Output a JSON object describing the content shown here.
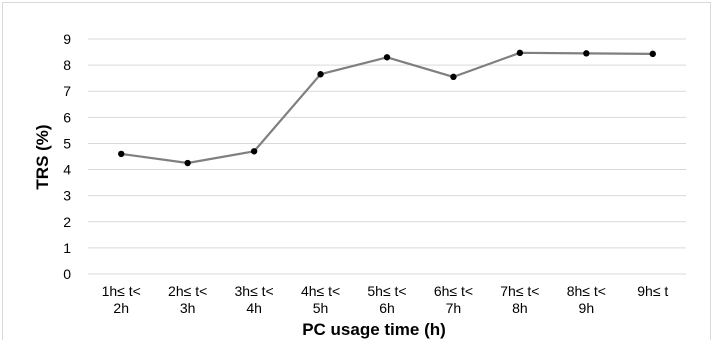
{
  "chart_data": {
    "type": "line",
    "title": "",
    "xlabel": "PC usage time (h)",
    "ylabel": "TRS (%)",
    "categories": [
      [
        "1h≤ t<",
        "2h"
      ],
      [
        "2h≤ t<",
        "3h"
      ],
      [
        "3h≤ t<",
        "4h"
      ],
      [
        "4h≤ t<",
        "5h"
      ],
      [
        "5h≤ t<",
        "6h"
      ],
      [
        "6h≤ t<",
        "7h"
      ],
      [
        "7h≤ t<",
        "8h"
      ],
      [
        "8h≤ t<",
        "9h"
      ],
      [
        "9h≤ t"
      ]
    ],
    "series": [
      {
        "values": [
          4.6,
          4.25,
          4.7,
          7.65,
          8.3,
          7.55,
          8.47,
          8.45,
          8.43
        ],
        "line_color": "#7f7f7f",
        "marker_color": "#000000"
      }
    ],
    "ylim": [
      0,
      9
    ],
    "yticks": [
      0,
      1,
      2,
      3,
      4,
      5,
      6,
      7,
      8,
      9
    ],
    "grid": true,
    "legend": "none"
  }
}
